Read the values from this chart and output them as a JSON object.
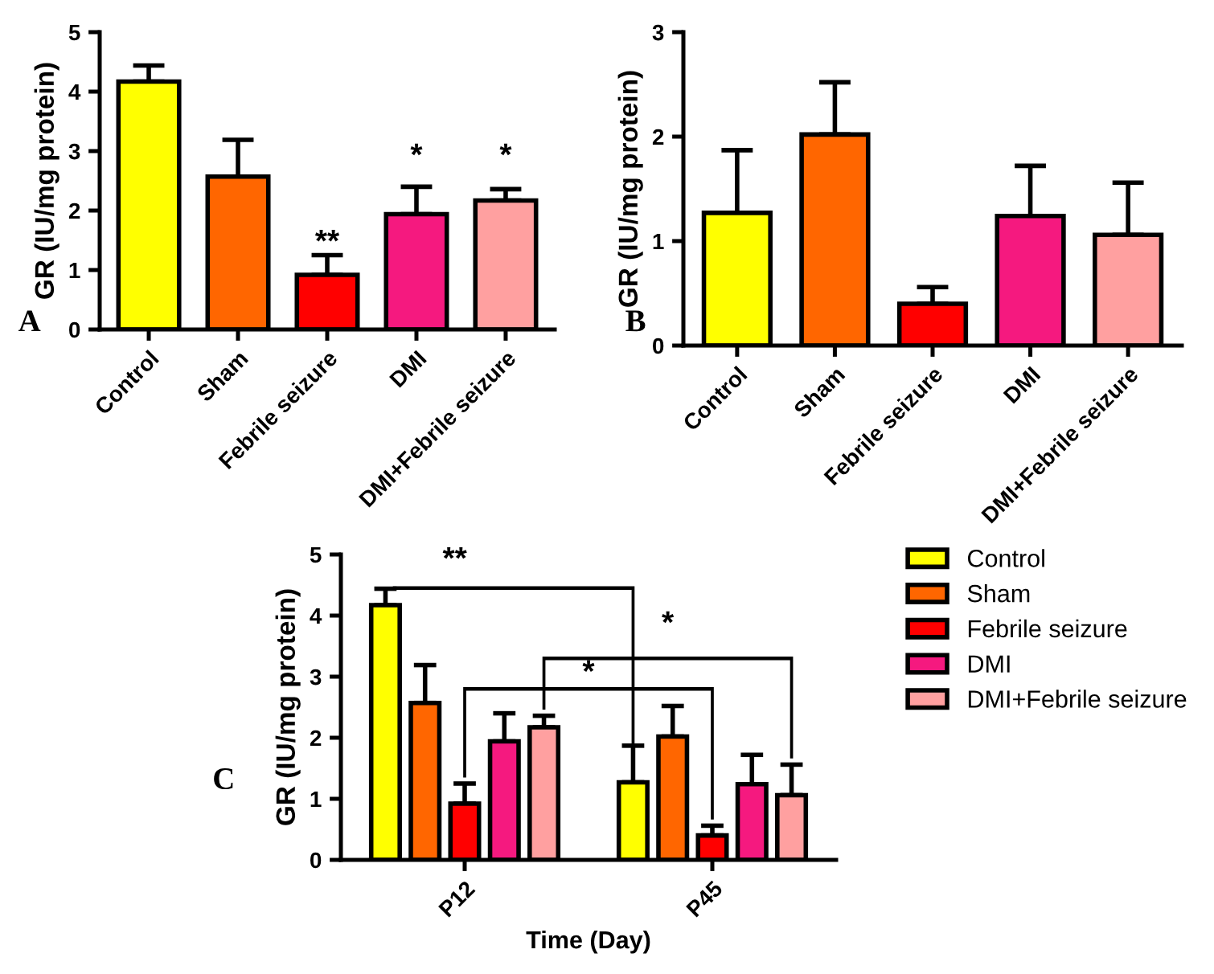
{
  "chart_data": [
    {
      "type": "bar",
      "categories": [
        "Control",
        "Sham",
        "Febrile seizure",
        "DMI",
        "DMI+Febrile seizure"
      ],
      "values": [
        4.17,
        2.57,
        0.92,
        1.94,
        2.17
      ],
      "errors": [
        [
          4.17,
          4.44
        ],
        [
          2.57,
          3.19
        ],
        [
          0.92,
          1.25
        ],
        [
          1.94,
          2.4
        ],
        [
          2.17,
          2.36
        ]
      ],
      "colors": [
        "#ffff00",
        "#ff6600",
        "#ff0000",
        "#f5197f",
        "#ffa0a0"
      ],
      "ylabel": "GR (IU/mg protein)",
      "ylim": [
        0,
        5
      ],
      "yticks": [
        0,
        1,
        2,
        3,
        4,
        5
      ],
      "grid": false,
      "annotations": [
        "A",
        "**",
        "*",
        "*"
      ]
    },
    {
      "type": "bar",
      "categories": [
        "Control",
        "Sham",
        "Febrile seizure",
        "DMI",
        "DMI+Febrile seizure"
      ],
      "values": [
        1.27,
        2.02,
        0.4,
        1.24,
        1.06
      ],
      "errors": [
        [
          1.27,
          1.87
        ],
        [
          2.02,
          2.52
        ],
        [
          0.4,
          0.56
        ],
        [
          1.24,
          1.72
        ],
        [
          1.06,
          1.56
        ]
      ],
      "colors": [
        "#ffff00",
        "#ff6600",
        "#ff0000",
        "#f5197f",
        "#ffa0a0"
      ],
      "ylabel": "GR (IU/mg protein)",
      "ylim": [
        0,
        3
      ],
      "yticks": [
        0,
        1,
        2,
        3
      ],
      "grid": false,
      "annotations": [
        "B"
      ]
    },
    {
      "type": "bar",
      "categories": [
        "P12",
        "P45"
      ],
      "xlabel": "Time (Day)",
      "ylabel": "GR (IU/mg protein)",
      "ylim": [
        0,
        5
      ],
      "yticks": [
        0,
        1,
        2,
        3,
        4,
        5
      ],
      "grid": false,
      "legend": "right",
      "series": [
        {
          "name": "Control",
          "color": "#ffff00",
          "values": [
            4.17,
            1.27
          ],
          "errors": [
            [
              4.17,
              4.44
            ],
            [
              1.27,
              1.87
            ]
          ]
        },
        {
          "name": "Sham",
          "color": "#ff6600",
          "values": [
            2.57,
            2.02
          ],
          "errors": [
            [
              2.57,
              3.19
            ],
            [
              2.02,
              2.52
            ]
          ]
        },
        {
          "name": "Febrile seizure",
          "color": "#ff0000",
          "values": [
            0.92,
            0.4
          ],
          "errors": [
            [
              0.92,
              1.25
            ],
            [
              0.4,
              0.56
            ]
          ]
        },
        {
          "name": "DMI",
          "color": "#f5197f",
          "values": [
            1.94,
            1.24
          ],
          "errors": [
            [
              1.94,
              2.4
            ],
            [
              1.24,
              1.72
            ]
          ]
        },
        {
          "name": "DMI+Febrile seizure",
          "color": "#ffa0a0",
          "values": [
            2.17,
            1.06
          ],
          "errors": [
            [
              2.17,
              2.36
            ],
            [
              1.06,
              1.56
            ]
          ]
        }
      ],
      "annotations": [
        "C",
        "**",
        "*",
        "*"
      ]
    }
  ]
}
